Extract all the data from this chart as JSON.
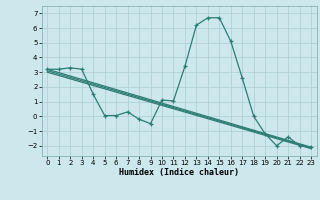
{
  "xlabel": "Humidex (Indice chaleur)",
  "ylabel": "",
  "bg_color": "#cce8ec",
  "grid_color": "#aacdd4",
  "line_color": "#2e7d74",
  "xlim": [
    -0.5,
    23.5
  ],
  "ylim": [
    -2.7,
    7.5
  ],
  "yticks": [
    -2,
    -1,
    0,
    1,
    2,
    3,
    4,
    5,
    6,
    7
  ],
  "xticks": [
    0,
    1,
    2,
    3,
    4,
    5,
    6,
    7,
    8,
    9,
    10,
    11,
    12,
    13,
    14,
    15,
    16,
    17,
    18,
    19,
    20,
    21,
    22,
    23
  ],
  "line1_x": [
    0,
    1,
    2,
    3,
    4,
    5,
    6,
    7,
    8,
    9,
    10,
    11,
    12,
    13,
    14,
    15,
    16,
    17,
    18,
    19,
    20,
    21,
    22,
    23
  ],
  "line1_y": [
    3.2,
    3.2,
    3.3,
    3.2,
    1.5,
    0.05,
    0.05,
    0.3,
    -0.2,
    -0.5,
    1.1,
    1.05,
    3.4,
    6.2,
    6.7,
    6.7,
    5.1,
    2.6,
    0.0,
    -1.2,
    -2.0,
    -1.4,
    -2.0,
    -2.1
  ],
  "line2_x": [
    0,
    23
  ],
  "line2_y": [
    3.2,
    -2.1
  ],
  "line3_x": [
    0,
    23
  ],
  "line3_y": [
    3.1,
    -2.15
  ],
  "line4_x": [
    0,
    23
  ],
  "line4_y": [
    3.0,
    -2.2
  ]
}
